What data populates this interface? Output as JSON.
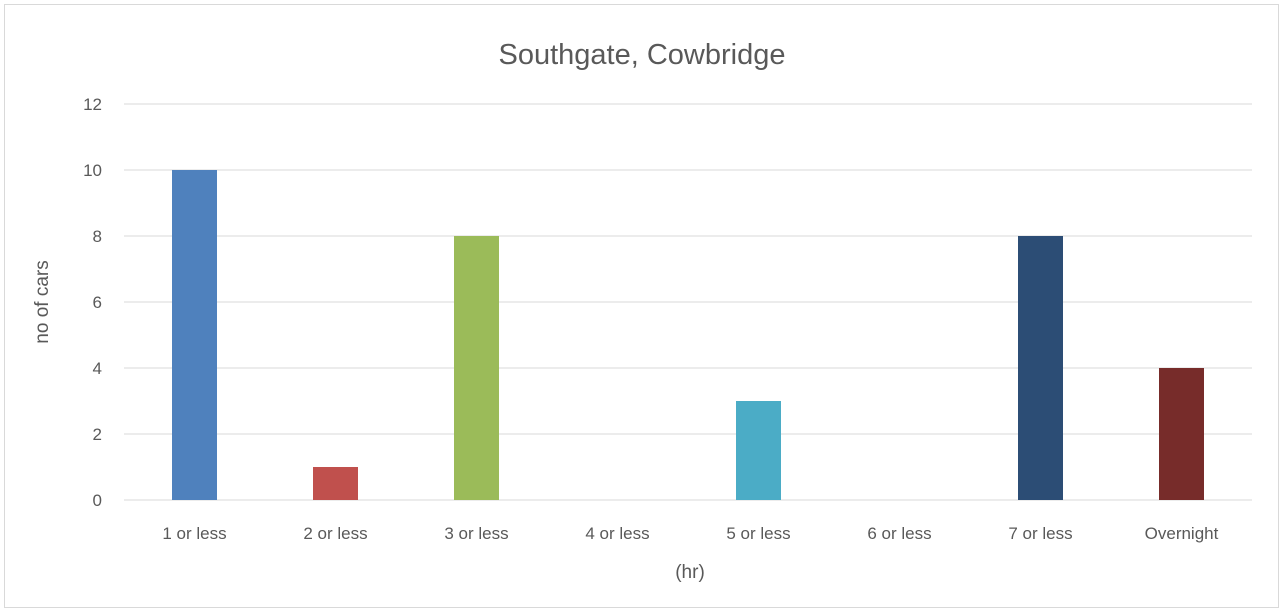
{
  "chart_data": {
    "type": "bar",
    "title": "Southgate, Cowbridge",
    "xlabel": "(hr)",
    "ylabel": "no of cars",
    "categories": [
      "1 or less",
      "2 or less",
      "3 or less",
      "4 or less",
      "5 or less",
      "6 or less",
      "7 or less",
      "Overnight"
    ],
    "values": [
      10,
      1,
      8,
      0,
      3,
      0,
      8,
      4
    ],
    "colors": [
      "#4f81bd",
      "#c0504d",
      "#9bbb59",
      "#8064a2",
      "#4bacc6",
      "#f79646",
      "#2c4d75",
      "#772c2a"
    ],
    "ylim": [
      0,
      12
    ],
    "yticks": [
      "0",
      "2",
      "4",
      "6",
      "8",
      "10",
      "12"
    ],
    "grid": true,
    "legend": "none"
  }
}
